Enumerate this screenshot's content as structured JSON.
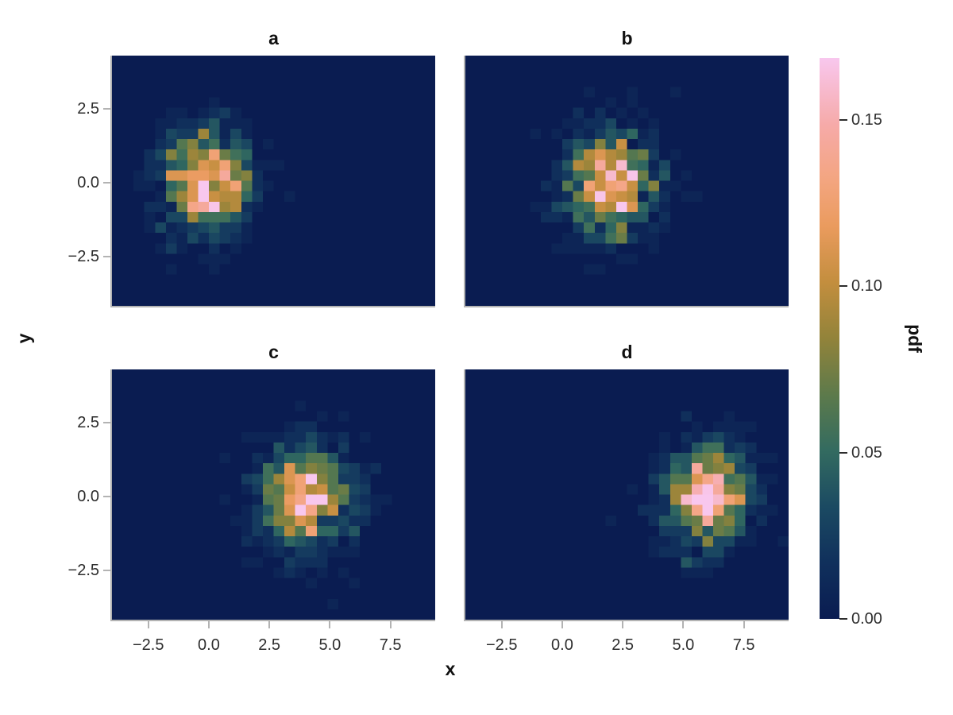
{
  "style": {
    "figure_background": "#ffffff",
    "spine_color": "#b3b3b3",
    "axis_tick_mark_color": "#b3b3b3",
    "colorbar_tick_mark_color": "#2d2d2d",
    "tick_label_color": "#2d2d2d",
    "text_color": "#111111"
  },
  "chart_data": {
    "type": "heatmap",
    "layout": "2x2 facet grid of 2D histogram pdf heatmaps, shared x/y axes, single colorbar on right",
    "grid": true,
    "legend_position": "right-colorbar",
    "subplots": [
      {
        "title": "a",
        "distribution": "2D Gaussian samples",
        "mean": [
          0,
          0
        ],
        "sigma": [
          1,
          1
        ],
        "peak_pdf": 0.16
      },
      {
        "title": "b",
        "distribution": "2D Gaussian samples",
        "mean": [
          2,
          0
        ],
        "sigma": [
          1,
          1
        ],
        "peak_pdf": 0.16
      },
      {
        "title": "c",
        "distribution": "2D Gaussian samples",
        "mean": [
          4,
          0
        ],
        "sigma": [
          1,
          1
        ],
        "peak_pdf": 0.16
      },
      {
        "title": "d",
        "distribution": "2D Gaussian samples",
        "mean": [
          6,
          0
        ],
        "sigma": [
          1,
          1
        ],
        "peak_pdf": 0.16
      }
    ],
    "x": {
      "label": "x",
      "range": [
        -4.0,
        9.35
      ],
      "ticks": [
        -2.5,
        0.0,
        2.5,
        5.0,
        7.5
      ],
      "tick_labels": [
        "−2.5",
        "0.0",
        "2.5",
        "5.0",
        "7.5"
      ]
    },
    "y": {
      "label": "y",
      "range": [
        -4.17,
        4.3
      ],
      "ticks": [
        2.5,
        0.0,
        -2.5
      ],
      "tick_labels": [
        "2.5",
        "0.0",
        "−2.5"
      ]
    },
    "colorbar": {
      "label": "pdf",
      "vmin": 0.0,
      "vmax": 0.1685,
      "ticks": [
        0.15,
        0.1,
        0.05,
        0.0
      ],
      "tick_labels": [
        "0.15",
        "0.10",
        "0.05",
        "0.00"
      ]
    },
    "bins": {
      "nx": 30,
      "ny": 24
    },
    "samples_per_subplot": 800,
    "colormap": {
      "name": "batlow-like",
      "stops": [
        [
          0.0,
          "#0a1c51"
        ],
        [
          0.1,
          "#10305c"
        ],
        [
          0.2,
          "#1b4a62"
        ],
        [
          0.3,
          "#336b60"
        ],
        [
          0.4,
          "#5d7a4b"
        ],
        [
          0.5,
          "#92833a"
        ],
        [
          0.6,
          "#c38e3e"
        ],
        [
          0.7,
          "#ea9b5e"
        ],
        [
          0.78,
          "#f3a57f"
        ],
        [
          0.88,
          "#f6aaa8"
        ],
        [
          1.0,
          "#f8c7ee"
        ]
      ]
    }
  }
}
